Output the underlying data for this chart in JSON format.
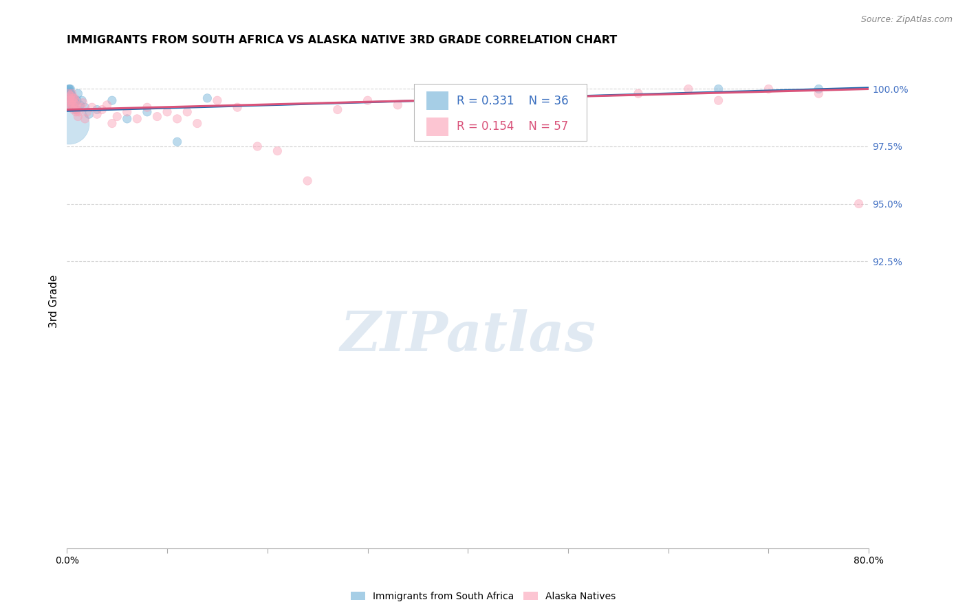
{
  "title": "IMMIGRANTS FROM SOUTH AFRICA VS ALASKA NATIVE 3RD GRADE CORRELATION CHART",
  "source": "Source: ZipAtlas.com",
  "ylabel": "3rd Grade",
  "xlim": [
    0.0,
    80.0
  ],
  "ylim": [
    80.0,
    101.5
  ],
  "ytick_values": [
    100.0,
    97.5,
    95.0,
    92.5
  ],
  "ytick_labels": [
    "100.0%",
    "97.5%",
    "95.0%",
    "92.5%"
  ],
  "blue_R": 0.331,
  "blue_N": 36,
  "pink_R": 0.154,
  "pink_N": 57,
  "blue_color": "#6baed6",
  "pink_color": "#fa9fb5",
  "blue_line_color": "#2166ac",
  "pink_line_color": "#d9537a",
  "watermark": "ZIPatlas",
  "background_color": "#ffffff",
  "grid_color": "#cccccc",
  "blue_x": [
    0.1,
    0.15,
    0.2,
    0.2,
    0.25,
    0.25,
    0.3,
    0.3,
    0.35,
    0.35,
    0.4,
    0.4,
    0.45,
    0.5,
    0.5,
    0.55,
    0.6,
    0.65,
    0.7,
    0.75,
    0.8,
    0.9,
    1.0,
    1.1,
    1.3,
    1.5,
    1.8,
    2.2,
    3.0,
    4.5,
    6.0,
    8.0,
    11.0,
    14.0,
    65.0,
    75.0
  ],
  "blue_y": [
    99.7,
    99.9,
    100.0,
    99.5,
    99.8,
    100.0,
    99.6,
    99.3,
    99.8,
    100.0,
    99.5,
    99.8,
    99.6,
    99.3,
    99.7,
    99.5,
    99.4,
    99.6,
    99.2,
    99.5,
    99.4,
    99.1,
    99.5,
    99.8,
    99.3,
    99.5,
    99.2,
    98.9,
    99.1,
    99.5,
    98.7,
    99.0,
    97.7,
    99.6,
    100.0,
    100.0
  ],
  "blue_sizes": [
    120,
    100,
    80,
    80,
    80,
    80,
    80,
    80,
    80,
    80,
    80,
    80,
    80,
    80,
    80,
    80,
    80,
    80,
    80,
    80,
    80,
    80,
    80,
    80,
    80,
    80,
    80,
    80,
    80,
    80,
    80,
    80,
    80,
    80,
    80,
    80
  ],
  "blue_big_x": 0.15,
  "blue_big_y": 98.5,
  "blue_big_size": 1800,
  "pink_x": [
    0.1,
    0.15,
    0.2,
    0.25,
    0.3,
    0.35,
    0.4,
    0.45,
    0.5,
    0.55,
    0.6,
    0.65,
    0.7,
    0.75,
    0.8,
    0.85,
    0.9,
    0.95,
    1.0,
    1.1,
    1.2,
    1.4,
    1.6,
    1.8,
    2.0,
    2.5,
    3.0,
    3.5,
    4.0,
    4.5,
    5.0,
    6.0,
    7.0,
    8.0,
    9.0,
    10.0,
    11.0,
    12.0,
    13.0,
    15.0,
    17.0,
    19.0,
    21.0,
    24.0,
    27.0,
    30.0,
    33.0,
    36.0,
    40.0,
    44.0,
    50.0,
    57.0,
    62.0,
    65.0,
    70.0,
    75.0,
    79.0
  ],
  "pink_y": [
    99.5,
    99.8,
    99.3,
    99.6,
    99.4,
    99.7,
    99.2,
    99.5,
    99.8,
    99.3,
    99.6,
    99.1,
    99.4,
    99.6,
    99.2,
    99.5,
    99.0,
    99.3,
    99.1,
    98.8,
    99.0,
    99.2,
    99.4,
    98.7,
    99.0,
    99.2,
    98.9,
    99.1,
    99.3,
    98.5,
    98.8,
    99.0,
    98.7,
    99.2,
    98.8,
    99.0,
    98.7,
    99.0,
    98.5,
    99.5,
    99.2,
    97.5,
    97.3,
    96.0,
    99.1,
    99.5,
    99.3,
    99.0,
    99.2,
    99.5,
    99.3,
    99.8,
    100.0,
    99.5,
    100.0,
    99.8,
    95.0
  ],
  "pink_sizes": [
    80,
    80,
    80,
    80,
    80,
    80,
    80,
    80,
    80,
    80,
    80,
    80,
    80,
    80,
    80,
    80,
    80,
    80,
    80,
    80,
    80,
    80,
    80,
    80,
    80,
    80,
    80,
    80,
    80,
    80,
    80,
    80,
    80,
    80,
    80,
    80,
    80,
    80,
    80,
    80,
    80,
    80,
    80,
    80,
    80,
    80,
    80,
    80,
    80,
    80,
    80,
    80,
    80,
    80,
    80,
    80,
    80
  ]
}
